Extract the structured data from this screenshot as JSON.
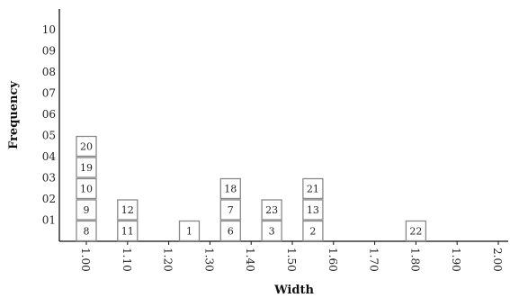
{
  "chart_data": {
    "type": "dot-plot",
    "title": "",
    "xlabel": "Width",
    "ylabel": "Frequency",
    "x_ticks": [
      "1.00",
      "1.10",
      "1.20",
      "1.30",
      "1.40",
      "1.50",
      "1.60",
      "1.70",
      "1.80",
      "1.90",
      "2.00"
    ],
    "y_ticks": [
      "01",
      "02",
      "03",
      "04",
      "05",
      "06",
      "07",
      "08",
      "09",
      "10"
    ],
    "xlim": [
      1.0,
      2.0
    ],
    "ylim": [
      0,
      10
    ],
    "grid": false,
    "stacks": [
      {
        "x": 1.0,
        "labels": [
          "8",
          "9",
          "10",
          "19",
          "20"
        ]
      },
      {
        "x": 1.1,
        "labels": [
          "11",
          "12"
        ]
      },
      {
        "x": 1.25,
        "labels": [
          "1"
        ]
      },
      {
        "x": 1.35,
        "labels": [
          "6",
          "7",
          "18"
        ]
      },
      {
        "x": 1.45,
        "labels": [
          "3",
          "23"
        ]
      },
      {
        "x": 1.55,
        "labels": [
          "2",
          "13",
          "21"
        ]
      },
      {
        "x": 1.8,
        "labels": [
          "22"
        ]
      }
    ],
    "colors": {
      "box_stroke": "#888888",
      "box_fill": "#ffffff",
      "axis": "#111111"
    }
  }
}
